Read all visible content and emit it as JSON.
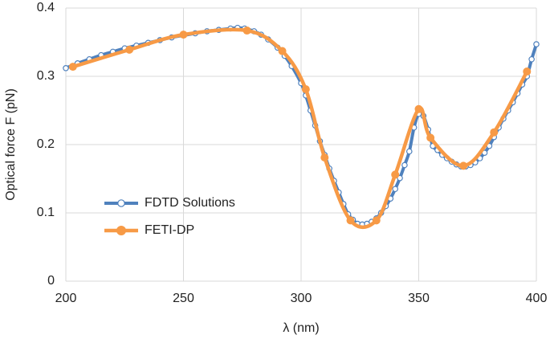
{
  "chart_data": {
    "type": "line",
    "xlabel": "λ (nm)",
    "ylabel": "Optical force F (pN)",
    "xlim": [
      200,
      400
    ],
    "xticks": [
      200,
      250,
      300,
      350,
      400
    ],
    "ylim": [
      0,
      0.4
    ],
    "yticks": [
      0,
      0.1,
      0.2,
      0.3,
      0.4
    ],
    "grid": true,
    "legend": "left",
    "series": [
      {
        "name": "FDTD Solutions",
        "color": "#4f81bd",
        "x": [
          200,
          205,
          210,
          215,
          220,
          225,
          230,
          235,
          240,
          245,
          250,
          255,
          260,
          265,
          270,
          273,
          276,
          280,
          283,
          286,
          290,
          293,
          296,
          300,
          302,
          304,
          306,
          308,
          310,
          312,
          314,
          316,
          318,
          320,
          322,
          324,
          326,
          328,
          330,
          332,
          334,
          336,
          338,
          340,
          342,
          344,
          346,
          348,
          350,
          352,
          354,
          356,
          358,
          360,
          362,
          364,
          366,
          368,
          370,
          372,
          374,
          376,
          378,
          380,
          382,
          384,
          386,
          388,
          390,
          392,
          394,
          396,
          398,
          400
        ],
        "values": [
          0.312,
          0.319,
          0.325,
          0.331,
          0.336,
          0.341,
          0.345,
          0.349,
          0.353,
          0.357,
          0.36,
          0.363,
          0.366,
          0.368,
          0.37,
          0.371,
          0.37,
          0.366,
          0.361,
          0.354,
          0.342,
          0.33,
          0.315,
          0.29,
          0.272,
          0.25,
          0.228,
          0.205,
          0.185,
          0.165,
          0.147,
          0.13,
          0.113,
          0.098,
          0.09,
          0.084,
          0.083,
          0.084,
          0.087,
          0.092,
          0.1,
          0.11,
          0.121,
          0.135,
          0.151,
          0.17,
          0.19,
          0.225,
          0.245,
          0.242,
          0.222,
          0.198,
          0.192,
          0.185,
          0.18,
          0.175,
          0.171,
          0.168,
          0.168,
          0.17,
          0.174,
          0.18,
          0.188,
          0.198,
          0.211,
          0.225,
          0.238,
          0.25,
          0.262,
          0.275,
          0.288,
          0.3,
          0.325,
          0.347
        ]
      },
      {
        "name": "FETI-DP",
        "color": "#f79a46",
        "x": [
          203,
          227,
          250,
          277,
          292,
          302,
          310,
          321,
          332,
          340,
          350,
          355,
          369,
          382,
          396
        ],
        "values": [
          0.314,
          0.339,
          0.361,
          0.367,
          0.337,
          0.281,
          0.181,
          0.089,
          0.089,
          0.156,
          0.252,
          0.21,
          0.169,
          0.218,
          0.307
        ]
      }
    ]
  }
}
